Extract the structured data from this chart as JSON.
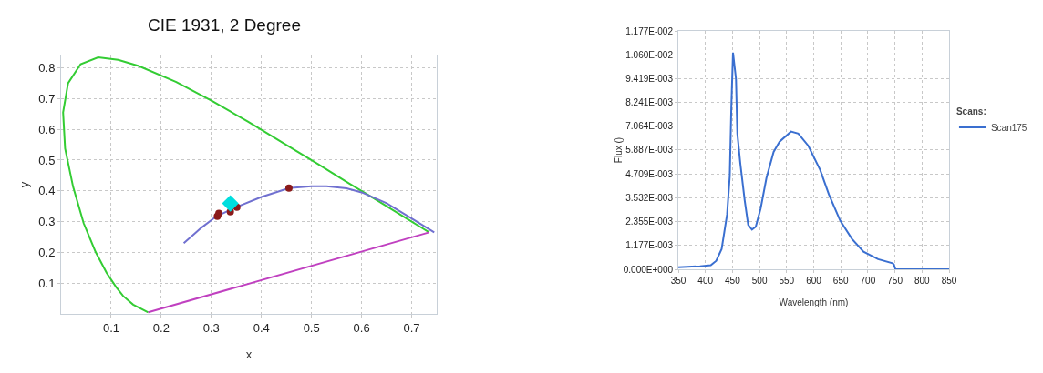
{
  "chart_data": [
    {
      "type": "scatter",
      "title": "CIE 1931, 2 Degree",
      "xlabel": "x",
      "ylabel": "y",
      "xlim": [
        0,
        0.75
      ],
      "ylim": [
        0,
        0.84
      ],
      "xticks": [
        0.1,
        0.2,
        0.3,
        0.4,
        0.5,
        0.6,
        0.7
      ],
      "yticks": [
        0.1,
        0.2,
        0.3,
        0.4,
        0.5,
        0.6,
        0.7,
        0.8
      ],
      "grid": true,
      "legend": false,
      "series": [
        {
          "type": "line",
          "marker": "none",
          "color": "#33cc33",
          "x": [
            0.174,
            0.144,
            0.124,
            0.11,
            0.091,
            0.069,
            0.045,
            0.024,
            0.008,
            0.004,
            0.014,
            0.039,
            0.074,
            0.114,
            0.155,
            0.23,
            0.302,
            0.373,
            0.444,
            0.513,
            0.575,
            0.627,
            0.692,
            0.719,
            0.735
          ],
          "values": [
            0.005,
            0.03,
            0.058,
            0.087,
            0.133,
            0.201,
            0.295,
            0.413,
            0.538,
            0.655,
            0.75,
            0.812,
            0.834,
            0.826,
            0.806,
            0.754,
            0.692,
            0.625,
            0.555,
            0.487,
            0.424,
            0.373,
            0.308,
            0.281,
            0.265
          ]
        },
        {
          "type": "line",
          "marker": "none",
          "color": "#c040c0",
          "x": [
            0.174,
            0.735
          ],
          "values": [
            0.005,
            0.265
          ]
        },
        {
          "type": "line",
          "marker": "none",
          "color": "#7070d0",
          "x": [
            0.245,
            0.28,
            0.31,
            0.35,
            0.4,
            0.455,
            0.5,
            0.53,
            0.57,
            0.6,
            0.65,
            0.7,
            0.745
          ],
          "values": [
            0.23,
            0.28,
            0.317,
            0.347,
            0.38,
            0.409,
            0.415,
            0.415,
            0.408,
            0.395,
            0.36,
            0.31,
            0.265
          ]
        },
        {
          "marker": "circle",
          "color": "#8b1a1a",
          "x": [
            0.312,
            0.315,
            0.338,
            0.351,
            0.455
          ],
          "values": [
            0.317,
            0.327,
            0.332,
            0.347,
            0.409
          ]
        },
        {
          "marker": "diamond",
          "color": "#00dede",
          "x": [
            0.338
          ],
          "values": [
            0.359
          ]
        }
      ]
    },
    {
      "type": "line",
      "xlabel": "Wavelength (nm)",
      "ylabel": "Flux ()",
      "legend_title": "Scans:",
      "legend": "right",
      "grid": true,
      "marker": "none",
      "line_style": "solid",
      "xlim": [
        350,
        850
      ],
      "ylim": [
        0,
        0.01177
      ],
      "xticks": [
        350,
        400,
        450,
        500,
        550,
        600,
        650,
        700,
        750,
        800,
        850
      ],
      "yticks": [
        {
          "value": 0,
          "label": "0.000E+000"
        },
        {
          "value": 0.001177,
          "label": "1.177E-003"
        },
        {
          "value": 0.002355,
          "label": "2.355E-003"
        },
        {
          "value": 0.003532,
          "label": "3.532E-003"
        },
        {
          "value": 0.004709,
          "label": "4.709E-003"
        },
        {
          "value": 0.005887,
          "label": "5.887E-003"
        },
        {
          "value": 0.007064,
          "label": "7.064E-003"
        },
        {
          "value": 0.008241,
          "label": "8.241E-003"
        },
        {
          "value": 0.009419,
          "label": "9.419E-003"
        },
        {
          "value": 0.0106,
          "label": "1.060E-002"
        },
        {
          "value": 0.01177,
          "label": "1.177E-002"
        }
      ],
      "series": [
        {
          "name": "Scan175",
          "color": "#3a6fd0",
          "x": [
            350,
            390,
            410,
            420,
            430,
            440,
            445,
            448,
            451,
            456.5,
            459,
            464.6,
            472.6,
            479,
            486,
            493,
            502,
            512.7,
            526,
            537,
            558,
            571.6,
            590,
            612,
            628,
            649,
            670.7,
            692,
            719,
            745.6,
            748,
            751,
            850
          ],
          "values": [
            0.0001,
            0.00015,
            0.0002,
            0.00042,
            0.001,
            0.0027,
            0.0046,
            0.0081,
            0.0107,
            0.0094,
            0.0067,
            0.0052,
            0.0034,
            0.0022,
            0.00196,
            0.0021,
            0.003,
            0.0045,
            0.0058,
            0.0063,
            0.0068,
            0.0067,
            0.0061,
            0.0049,
            0.0037,
            0.0024,
            0.0015,
            0.00087,
            0.0005,
            0.0003,
            0.00024,
            0,
            0
          ]
        }
      ]
    }
  ]
}
